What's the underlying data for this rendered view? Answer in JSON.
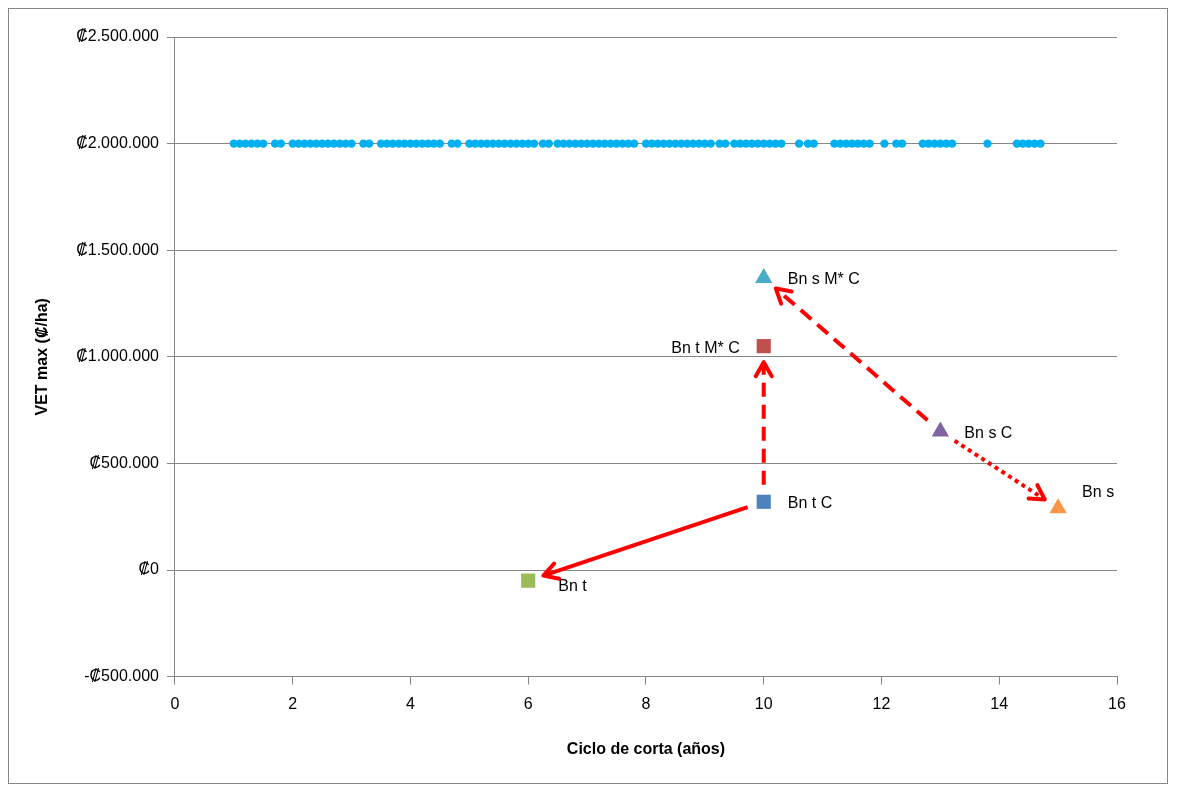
{
  "chart_data": {
    "type": "scatter",
    "xlabel": "Ciclo de corta (años)",
    "ylabel": "VET max (₡/ha)",
    "xlim": [
      0,
      16
    ],
    "xticks": [
      0,
      2,
      4,
      6,
      8,
      10,
      12,
      14,
      16
    ],
    "ylim": [
      -500000,
      2500000
    ],
    "yticks": [
      {
        "value": -500000,
        "label": "-₡500.000"
      },
      {
        "value": 0,
        "label": "₡0"
      },
      {
        "value": 500000,
        "label": "₡500.000"
      },
      {
        "value": 1000000,
        "label": "₡1.000.000"
      },
      {
        "value": 1500000,
        "label": "₡1.500.000"
      },
      {
        "value": 2000000,
        "label": "₡2.000.000"
      },
      {
        "value": 2500000,
        "label": "₡2.500.000"
      }
    ],
    "grid": "y",
    "legend": false,
    "series": [
      {
        "color": "#00b0f0",
        "marker": "circle",
        "x": [
          1.0,
          1.1,
          1.2,
          1.3,
          1.4,
          1.5,
          1.7,
          1.8,
          2.0,
          2.1,
          2.2,
          2.3,
          2.4,
          2.5,
          2.6,
          2.7,
          2.8,
          2.9,
          3.0,
          3.2,
          3.3,
          3.5,
          3.6,
          3.7,
          3.8,
          3.9,
          4.0,
          4.1,
          4.2,
          4.3,
          4.4,
          4.5,
          4.7,
          4.8,
          5.0,
          5.1,
          5.2,
          5.3,
          5.4,
          5.5,
          5.6,
          5.7,
          5.8,
          5.9,
          6.0,
          6.1,
          6.25,
          6.35,
          6.5,
          6.6,
          6.7,
          6.8,
          6.9,
          7.0,
          7.1,
          7.2,
          7.3,
          7.4,
          7.5,
          7.6,
          7.7,
          7.8,
          8.0,
          8.1,
          8.2,
          8.3,
          8.4,
          8.5,
          8.6,
          8.7,
          8.8,
          8.9,
          9.0,
          9.1,
          9.25,
          9.35,
          9.5,
          9.6,
          9.7,
          9.8,
          9.9,
          10.0,
          10.1,
          10.2,
          10.3,
          10.6,
          10.75,
          10.85,
          11.2,
          11.3,
          11.4,
          11.5,
          11.6,
          11.7,
          11.8,
          12.05,
          12.25,
          12.35,
          12.7,
          12.8,
          12.9,
          13.0,
          13.1,
          13.2,
          13.8,
          14.3,
          14.4,
          14.5,
          14.6,
          14.7
        ],
        "values": [
          2000000,
          2000000,
          2000000,
          2000000,
          2000000,
          2000000,
          2000000,
          2000000,
          2000000,
          2000000,
          2000000,
          2000000,
          2000000,
          2000000,
          2000000,
          2000000,
          2000000,
          2000000,
          2000000,
          2000000,
          2000000,
          2000000,
          2000000,
          2000000,
          2000000,
          2000000,
          2000000,
          2000000,
          2000000,
          2000000,
          2000000,
          2000000,
          2000000,
          2000000,
          2000000,
          2000000,
          2000000,
          2000000,
          2000000,
          2000000,
          2000000,
          2000000,
          2000000,
          2000000,
          2000000,
          2000000,
          2000000,
          2000000,
          2000000,
          2000000,
          2000000,
          2000000,
          2000000,
          2000000,
          2000000,
          2000000,
          2000000,
          2000000,
          2000000,
          2000000,
          2000000,
          2000000,
          2000000,
          2000000,
          2000000,
          2000000,
          2000000,
          2000000,
          2000000,
          2000000,
          2000000,
          2000000,
          2000000,
          2000000,
          2000000,
          2000000,
          2000000,
          2000000,
          2000000,
          2000000,
          2000000,
          2000000,
          2000000,
          2000000,
          2000000,
          2000000,
          2000000,
          2000000,
          2000000,
          2000000,
          2000000,
          2000000,
          2000000,
          2000000,
          2000000,
          2000000,
          2000000,
          2000000,
          2000000,
          2000000,
          2000000,
          2000000,
          2000000,
          2000000,
          2000000,
          2000000,
          2000000,
          2000000,
          2000000,
          2000000
        ]
      },
      {
        "name": "Bn t",
        "color": "#9bbb59",
        "marker": "square",
        "x": [
          6
        ],
        "values": [
          -50000
        ]
      },
      {
        "name": "Bn t C",
        "color": "#4f81bd",
        "marker": "square",
        "x": [
          10
        ],
        "values": [
          320000
        ]
      },
      {
        "name": "Bn t M* C",
        "color": "#c0504d",
        "marker": "square",
        "x": [
          10
        ],
        "values": [
          1050000
        ]
      },
      {
        "name": "Bn s M* C",
        "color": "#4bacc6",
        "marker": "triangle",
        "x": [
          10
        ],
        "values": [
          1370000
        ]
      },
      {
        "name": "Bn s C",
        "color": "#8064a2",
        "marker": "triangle",
        "x": [
          13
        ],
        "values": [
          650000
        ]
      },
      {
        "name": "Bn s",
        "color": "#f79646",
        "marker": "triangle",
        "x": [
          15
        ],
        "values": [
          290000
        ]
      }
    ]
  }
}
